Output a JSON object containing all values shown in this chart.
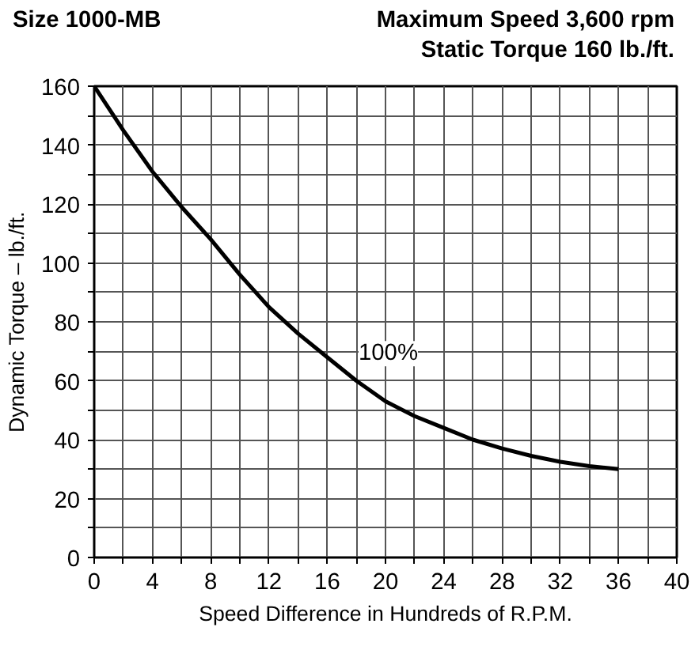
{
  "chart_data": {
    "type": "line",
    "title": "Size 1000-MB",
    "subtitle": "Maximum Speed 3,600 rpm\nStatic Torque 160 lb./ft.",
    "xlabel": "Speed Difference in Hundreds of R.P.M.",
    "ylabel": "Dynamic Torque – lb./ft.",
    "x": [
      0,
      2,
      4,
      6,
      8,
      10,
      12,
      14,
      16,
      18,
      20,
      22,
      24,
      26,
      28,
      30,
      32,
      34,
      36
    ],
    "series": [
      {
        "color": "#000000",
        "values": [
          160,
          145,
          131,
          119,
          108,
          96,
          85,
          76,
          68,
          60,
          53,
          48,
          44,
          40,
          37,
          34.5,
          32.5,
          31,
          30
        ]
      }
    ],
    "xlim": [
      0,
      40
    ],
    "ylim": [
      0,
      160
    ],
    "xticks": [
      0,
      {
        "value": 2,
        "label": null
      },
      4,
      {
        "value": 6,
        "label": null
      },
      8,
      {
        "value": 10,
        "label": null
      },
      12,
      {
        "value": 14,
        "label": null
      },
      16,
      {
        "value": 18,
        "label": null
      },
      20,
      {
        "value": 22,
        "label": null
      },
      24,
      {
        "value": 26,
        "label": null
      },
      28,
      {
        "value": 30,
        "label": null
      },
      32,
      {
        "value": 34,
        "label": null
      },
      36,
      {
        "value": 38,
        "label": null
      },
      40
    ],
    "yticks": [
      0,
      {
        "value": 10,
        "label": null
      },
      20,
      {
        "value": 30,
        "label": null
      },
      40,
      {
        "value": 50,
        "label": null
      },
      60,
      {
        "value": 70,
        "label": null
      },
      80,
      {
        "value": 90,
        "label": null
      },
      100,
      {
        "value": 110,
        "label": null
      },
      120,
      {
        "value": 130,
        "label": null
      },
      140,
      {
        "value": 150,
        "label": null
      },
      160
    ],
    "annotations": [
      {
        "text": "100%",
        "x": 17.5,
        "y": 66
      }
    ],
    "grid": true,
    "marker": "none",
    "line_style": "solid"
  }
}
